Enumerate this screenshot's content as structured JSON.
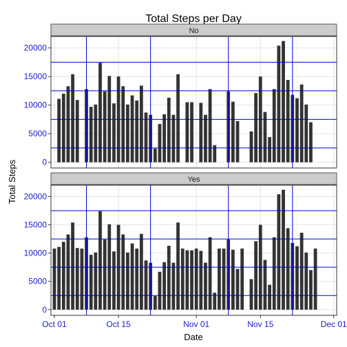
{
  "chart_data": {
    "type": "bar",
    "title": "Total Steps per Day",
    "xlabel": "Date",
    "ylabel": "Total Steps",
    "ylim": [
      0,
      22000
    ],
    "yticks": [
      0,
      5000,
      10000,
      15000,
      20000
    ],
    "y_ref_lines": [
      2500,
      7500,
      12500,
      17500
    ],
    "xticks": [
      "Oct 01",
      "Oct 15",
      "Nov 01",
      "Nov 15",
      "Dec 01"
    ],
    "x_ref_dates": [
      "2012-10-08",
      "2012-10-22",
      "2012-11-08",
      "2012-11-22"
    ],
    "facet_variable_levels": [
      "No",
      "Yes"
    ],
    "grid": true,
    "colors": {
      "bar": "#333333",
      "ref_line": "#0000cc",
      "strip": "#cccccc",
      "panel_border": "#333333",
      "tick_label": "#1a1ad6"
    },
    "x": [
      "2012-10-01",
      "2012-10-02",
      "2012-10-03",
      "2012-10-04",
      "2012-10-05",
      "2012-10-06",
      "2012-10-07",
      "2012-10-08",
      "2012-10-09",
      "2012-10-10",
      "2012-10-11",
      "2012-10-12",
      "2012-10-13",
      "2012-10-14",
      "2012-10-15",
      "2012-10-16",
      "2012-10-17",
      "2012-10-18",
      "2012-10-19",
      "2012-10-20",
      "2012-10-21",
      "2012-10-22",
      "2012-10-23",
      "2012-10-24",
      "2012-10-25",
      "2012-10-26",
      "2012-10-27",
      "2012-10-28",
      "2012-10-29",
      "2012-10-30",
      "2012-10-31",
      "2012-11-01",
      "2012-11-02",
      "2012-11-03",
      "2012-11-04",
      "2012-11-05",
      "2012-11-06",
      "2012-11-07",
      "2012-11-08",
      "2012-11-09",
      "2012-11-10",
      "2012-11-11",
      "2012-11-12",
      "2012-11-13",
      "2012-11-14",
      "2012-11-15",
      "2012-11-16",
      "2012-11-17",
      "2012-11-18",
      "2012-11-19",
      "2012-11-20",
      "2012-11-21",
      "2012-11-22",
      "2012-11-23",
      "2012-11-24",
      "2012-11-25",
      "2012-11-26",
      "2012-11-27",
      "2012-11-28",
      "2012-11-29",
      "2012-11-30"
    ],
    "series": [
      {
        "name": "No",
        "values": [
          null,
          11100,
          12000,
          13300,
          15400,
          10900,
          null,
          12800,
          9700,
          10100,
          17400,
          12400,
          15100,
          10300,
          15000,
          13300,
          10100,
          11700,
          10800,
          13400,
          8700,
          8300,
          2400,
          6700,
          8400,
          11300,
          8300,
          15400,
          null,
          10500,
          10500,
          null,
          10400,
          8300,
          12800,
          3000,
          null,
          null,
          12400,
          10600,
          7200,
          null,
          null,
          5400,
          12100,
          15000,
          8800,
          4400,
          12800,
          20400,
          21200,
          14400,
          11800,
          11200,
          13600,
          10100,
          7000,
          null,
          null,
          null,
          null
        ]
      },
      {
        "name": "Yes",
        "values": [
          10800,
          11100,
          12000,
          13300,
          15400,
          10900,
          10800,
          12800,
          9700,
          10100,
          17400,
          12400,
          15100,
          10300,
          15000,
          13300,
          10100,
          11700,
          10800,
          13400,
          8700,
          8300,
          2400,
          6700,
          8400,
          11300,
          8300,
          15400,
          10800,
          10500,
          10500,
          10800,
          10400,
          8300,
          12800,
          3000,
          10800,
          10800,
          12400,
          10600,
          7200,
          10800,
          null,
          5400,
          12100,
          15000,
          8800,
          4400,
          12800,
          20400,
          21200,
          14400,
          11800,
          11200,
          13600,
          10100,
          7000,
          10800,
          null,
          null,
          null
        ]
      }
    ]
  }
}
